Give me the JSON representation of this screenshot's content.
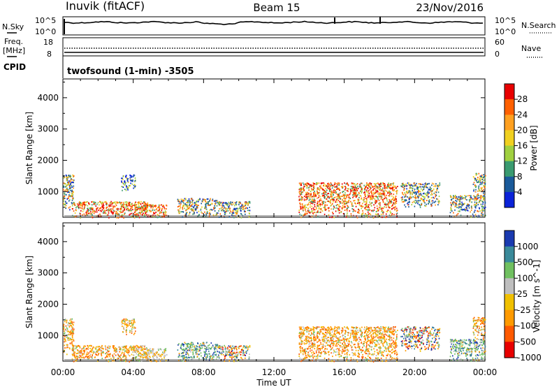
{
  "header": {
    "station": "Inuvik (fitACF)",
    "beam": "Beam 15",
    "date": "23/Nov/2016"
  },
  "noise_panel": {
    "left_label": "N.Sky",
    "left_ticks": [
      "10^5",
      "10^0"
    ],
    "right_ticks": [
      "10^5",
      "10^0"
    ],
    "right_label": "N.Search"
  },
  "freq_panel": {
    "left_label_line1": "Freq.",
    "left_label_line2": "[MHz]",
    "left_ticks": [
      "18",
      "8"
    ],
    "right_ticks": [
      "60",
      "0"
    ],
    "right_label": "Nave"
  },
  "cpid": {
    "label": "CPID",
    "program": "twofsound (1-min) -3505"
  },
  "x_axis": {
    "ticks": [
      "00:00",
      "04:00",
      "08:00",
      "12:00",
      "16:00",
      "20:00",
      "00:00"
    ],
    "label": "Time UT"
  },
  "chart_data": [
    {
      "type": "heatmap",
      "quantity": "Power",
      "ylabel": "Slant Range [km]",
      "ylim": [
        180,
        4600
      ],
      "yticks": [
        1000,
        2000,
        3000,
        4000
      ],
      "xlim_hours": [
        0,
        24
      ],
      "colorbar": {
        "label": "Power [dB]",
        "ticks": [
          "28",
          "24",
          "20",
          "16",
          "12",
          "8",
          "4"
        ],
        "colors": [
          "#e80000",
          "#ff6000",
          "#ffa020",
          "#f0d020",
          "#a0d040",
          "#3a9a70",
          "#1a5a9a",
          "#0a22d8"
        ]
      },
      "echo_regions": [
        {
          "t": [
            0.0,
            0.6
          ],
          "range": [
            400,
            1550
          ],
          "level": "mid"
        },
        {
          "t": [
            0.5,
            4.8
          ],
          "range": [
            180,
            700
          ],
          "level": "high"
        },
        {
          "t": [
            3.3,
            4.1
          ],
          "range": [
            1050,
            1550
          ],
          "level": "low"
        },
        {
          "t": [
            4.0,
            5.9
          ],
          "range": [
            180,
            600
          ],
          "level": "high"
        },
        {
          "t": [
            6.5,
            8.8
          ],
          "range": [
            180,
            800
          ],
          "level": "mid"
        },
        {
          "t": [
            8.8,
            10.6
          ],
          "range": [
            180,
            700
          ],
          "level": "mid"
        },
        {
          "t": [
            13.4,
            19.0
          ],
          "range": [
            180,
            1300
          ],
          "level": "high"
        },
        {
          "t": [
            19.2,
            21.4
          ],
          "range": [
            500,
            1300
          ],
          "level": "mid"
        },
        {
          "t": [
            22.0,
            24.0
          ],
          "range": [
            200,
            900
          ],
          "level": "mid"
        },
        {
          "t": [
            23.3,
            24.0
          ],
          "range": [
            900,
            1600
          ],
          "level": "mid"
        }
      ]
    },
    {
      "type": "heatmap",
      "quantity": "Velocity",
      "ylabel": "Slant Range [km]",
      "ylim": [
        180,
        4600
      ],
      "yticks": [
        1000,
        2000,
        3000,
        4000
      ],
      "xlim_hours": [
        0,
        24
      ],
      "colorbar": {
        "label": "Velocity [m s^-1]",
        "ticks": [
          "1000",
          "500",
          "100",
          "25",
          "-25",
          "-100",
          "-500",
          "-1000"
        ],
        "colors": [
          "#1a3ab0",
          "#3a8a9a",
          "#70c060",
          "#bebebe",
          "#f0c000",
          "#ff9a00",
          "#ff5a00",
          "#e80000"
        ]
      },
      "echo_regions": [
        {
          "t": [
            0.0,
            0.6
          ],
          "range": [
            400,
            1550
          ],
          "level": "neg"
        },
        {
          "t": [
            0.5,
            4.8
          ],
          "range": [
            180,
            700
          ],
          "level": "neg"
        },
        {
          "t": [
            3.3,
            4.1
          ],
          "range": [
            1050,
            1550
          ],
          "level": "neg"
        },
        {
          "t": [
            4.0,
            5.9
          ],
          "range": [
            180,
            600
          ],
          "level": "zero"
        },
        {
          "t": [
            6.5,
            8.8
          ],
          "range": [
            180,
            800
          ],
          "level": "pos"
        },
        {
          "t": [
            8.8,
            10.6
          ],
          "range": [
            180,
            700
          ],
          "level": "mix"
        },
        {
          "t": [
            13.4,
            19.0
          ],
          "range": [
            180,
            1300
          ],
          "level": "neg"
        },
        {
          "t": [
            19.2,
            21.4
          ],
          "range": [
            500,
            1300
          ],
          "level": "mix"
        },
        {
          "t": [
            22.0,
            24.0
          ],
          "range": [
            200,
            900
          ],
          "level": "pos"
        },
        {
          "t": [
            23.3,
            24.0
          ],
          "range": [
            900,
            1600
          ],
          "level": "neg"
        }
      ]
    }
  ]
}
